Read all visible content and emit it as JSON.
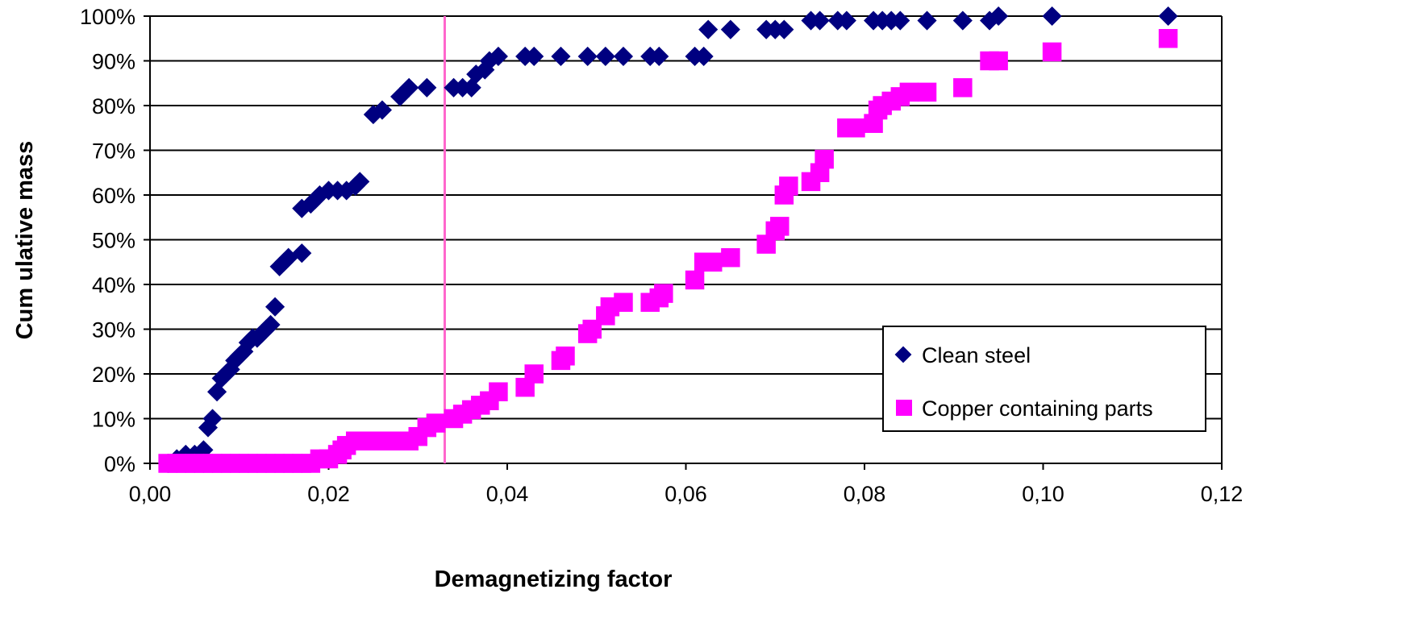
{
  "chart_data": {
    "type": "scatter",
    "xlabel": "Demagnetizing factor",
    "ylabel": "Cum ulative mass",
    "xlim": [
      0,
      0.12
    ],
    "ylim": [
      0,
      1
    ],
    "x_ticks": [
      "0,00",
      "0,02",
      "0,04",
      "0,06",
      "0,08",
      "0,10",
      "0,12"
    ],
    "y_ticks": [
      "0%",
      "10%",
      "20%",
      "30%",
      "40%",
      "50%",
      "60%",
      "70%",
      "80%",
      "90%",
      "100%"
    ],
    "grid": "horizontal",
    "legend_position": "lower-right",
    "reference_line_x": 0.033,
    "reference_line_color": "#ff66cc",
    "series": [
      {
        "name": "Clean steel",
        "marker": "diamond",
        "color": "#000080",
        "points": [
          [
            0.002,
            0.0
          ],
          [
            0.003,
            0.01
          ],
          [
            0.004,
            0.02
          ],
          [
            0.005,
            0.02
          ],
          [
            0.006,
            0.03
          ],
          [
            0.0065,
            0.08
          ],
          [
            0.007,
            0.1
          ],
          [
            0.0075,
            0.16
          ],
          [
            0.008,
            0.19
          ],
          [
            0.0085,
            0.2
          ],
          [
            0.009,
            0.21
          ],
          [
            0.0095,
            0.23
          ],
          [
            0.01,
            0.24
          ],
          [
            0.0105,
            0.25
          ],
          [
            0.011,
            0.27
          ],
          [
            0.0115,
            0.28
          ],
          [
            0.012,
            0.28
          ],
          [
            0.0125,
            0.29
          ],
          [
            0.013,
            0.3
          ],
          [
            0.0135,
            0.31
          ],
          [
            0.014,
            0.35
          ],
          [
            0.0145,
            0.44
          ],
          [
            0.015,
            0.45
          ],
          [
            0.0155,
            0.46
          ],
          [
            0.017,
            0.47
          ],
          [
            0.017,
            0.57
          ],
          [
            0.018,
            0.58
          ],
          [
            0.0185,
            0.59
          ],
          [
            0.019,
            0.6
          ],
          [
            0.02,
            0.61
          ],
          [
            0.021,
            0.61
          ],
          [
            0.022,
            0.61
          ],
          [
            0.023,
            0.62
          ],
          [
            0.0235,
            0.63
          ],
          [
            0.025,
            0.78
          ],
          [
            0.026,
            0.79
          ],
          [
            0.028,
            0.82
          ],
          [
            0.029,
            0.84
          ],
          [
            0.031,
            0.84
          ],
          [
            0.034,
            0.84
          ],
          [
            0.035,
            0.84
          ],
          [
            0.036,
            0.84
          ],
          [
            0.0365,
            0.87
          ],
          [
            0.0375,
            0.88
          ],
          [
            0.038,
            0.9
          ],
          [
            0.039,
            0.91
          ],
          [
            0.042,
            0.91
          ],
          [
            0.043,
            0.91
          ],
          [
            0.046,
            0.91
          ],
          [
            0.049,
            0.91
          ],
          [
            0.051,
            0.91
          ],
          [
            0.053,
            0.91
          ],
          [
            0.056,
            0.91
          ],
          [
            0.057,
            0.91
          ],
          [
            0.061,
            0.91
          ],
          [
            0.062,
            0.91
          ],
          [
            0.0625,
            0.97
          ],
          [
            0.065,
            0.97
          ],
          [
            0.069,
            0.97
          ],
          [
            0.07,
            0.97
          ],
          [
            0.071,
            0.97
          ],
          [
            0.074,
            0.99
          ],
          [
            0.075,
            0.99
          ],
          [
            0.077,
            0.99
          ],
          [
            0.078,
            0.99
          ],
          [
            0.081,
            0.99
          ],
          [
            0.082,
            0.99
          ],
          [
            0.083,
            0.99
          ],
          [
            0.084,
            0.99
          ],
          [
            0.087,
            0.99
          ],
          [
            0.091,
            0.99
          ],
          [
            0.094,
            0.99
          ],
          [
            0.095,
            1.0
          ],
          [
            0.101,
            1.0
          ],
          [
            0.114,
            1.0
          ]
        ]
      },
      {
        "name": "Copper containing parts",
        "marker": "square",
        "color": "#ff00ff",
        "points": [
          [
            0.002,
            0.0
          ],
          [
            0.003,
            0.0
          ],
          [
            0.004,
            0.0
          ],
          [
            0.005,
            0.0
          ],
          [
            0.006,
            0.0
          ],
          [
            0.007,
            0.0
          ],
          [
            0.008,
            0.0
          ],
          [
            0.009,
            0.0
          ],
          [
            0.01,
            0.0
          ],
          [
            0.011,
            0.0
          ],
          [
            0.012,
            0.0
          ],
          [
            0.013,
            0.0
          ],
          [
            0.014,
            0.0
          ],
          [
            0.015,
            0.0
          ],
          [
            0.016,
            0.0
          ],
          [
            0.017,
            0.0
          ],
          [
            0.018,
            0.0
          ],
          [
            0.019,
            0.01
          ],
          [
            0.02,
            0.01
          ],
          [
            0.021,
            0.02
          ],
          [
            0.0215,
            0.03
          ],
          [
            0.022,
            0.04
          ],
          [
            0.023,
            0.05
          ],
          [
            0.024,
            0.05
          ],
          [
            0.025,
            0.05
          ],
          [
            0.026,
            0.05
          ],
          [
            0.027,
            0.05
          ],
          [
            0.028,
            0.05
          ],
          [
            0.029,
            0.05
          ],
          [
            0.03,
            0.06
          ],
          [
            0.031,
            0.08
          ],
          [
            0.032,
            0.09
          ],
          [
            0.034,
            0.1
          ],
          [
            0.035,
            0.11
          ],
          [
            0.036,
            0.12
          ],
          [
            0.037,
            0.13
          ],
          [
            0.038,
            0.14
          ],
          [
            0.039,
            0.16
          ],
          [
            0.042,
            0.17
          ],
          [
            0.043,
            0.2
          ],
          [
            0.046,
            0.23
          ],
          [
            0.0465,
            0.24
          ],
          [
            0.049,
            0.29
          ],
          [
            0.0495,
            0.3
          ],
          [
            0.051,
            0.33
          ],
          [
            0.0515,
            0.35
          ],
          [
            0.053,
            0.36
          ],
          [
            0.056,
            0.36
          ],
          [
            0.057,
            0.37
          ],
          [
            0.0575,
            0.38
          ],
          [
            0.061,
            0.41
          ],
          [
            0.062,
            0.45
          ],
          [
            0.063,
            0.45
          ],
          [
            0.065,
            0.46
          ],
          [
            0.069,
            0.49
          ],
          [
            0.07,
            0.52
          ],
          [
            0.0705,
            0.53
          ],
          [
            0.071,
            0.6
          ],
          [
            0.0715,
            0.62
          ],
          [
            0.074,
            0.63
          ],
          [
            0.075,
            0.65
          ],
          [
            0.0755,
            0.68
          ],
          [
            0.078,
            0.75
          ],
          [
            0.079,
            0.75
          ],
          [
            0.081,
            0.76
          ],
          [
            0.0815,
            0.79
          ],
          [
            0.082,
            0.8
          ],
          [
            0.083,
            0.81
          ],
          [
            0.084,
            0.82
          ],
          [
            0.085,
            0.83
          ],
          [
            0.087,
            0.83
          ],
          [
            0.091,
            0.84
          ],
          [
            0.094,
            0.9
          ],
          [
            0.095,
            0.9
          ],
          [
            0.101,
            0.92
          ],
          [
            0.114,
            0.95
          ]
        ]
      }
    ]
  }
}
